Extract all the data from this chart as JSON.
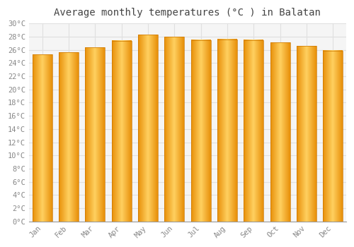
{
  "title": "Average monthly temperatures (°C ) in Balatan",
  "months": [
    "Jan",
    "Feb",
    "Mar",
    "Apr",
    "May",
    "Jun",
    "Jul",
    "Aug",
    "Sep",
    "Oct",
    "Nov",
    "Dec"
  ],
  "temperatures": [
    25.3,
    25.6,
    26.4,
    27.4,
    28.3,
    28.0,
    27.5,
    27.6,
    27.5,
    27.1,
    26.6,
    25.9
  ],
  "bar_color_left": "#E8900A",
  "bar_color_center": "#FFD060",
  "bar_color_right": "#E8900A",
  "ylim": [
    0,
    30
  ],
  "ytick_step": 2,
  "background_color": "#ffffff",
  "plot_bg_color": "#f5f5f5",
  "grid_color": "#e0e0e0",
  "title_fontsize": 10,
  "tick_fontsize": 7.5,
  "font_color": "#888888"
}
